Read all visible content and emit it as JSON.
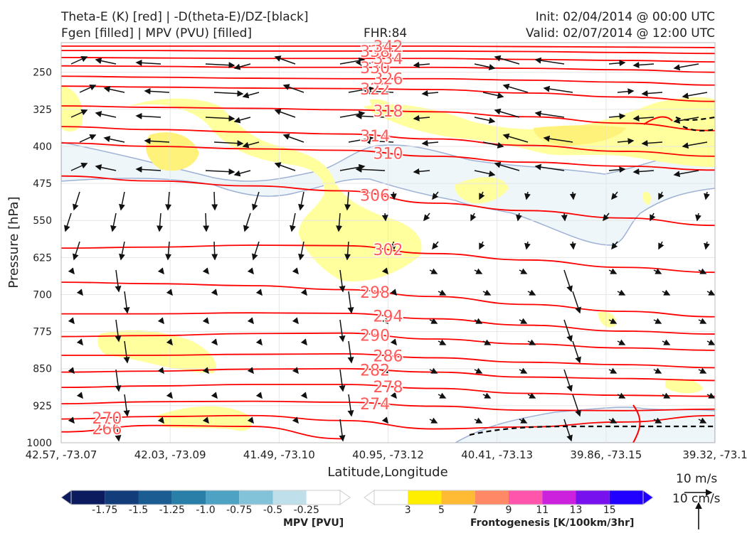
{
  "header": {
    "line1_left": "Theta-E (K) [red] | -D(theta-E)/DZ-[black]",
    "line2_left": "Fgen [filled] | MPV (PVU) [filled]",
    "fhr": "FHR:84",
    "init": "Init: 02/04/2014 @ 00:00 UTC",
    "valid": "Valid: 02/07/2014 @ 12:00 UTC"
  },
  "chart_data": {
    "type": "cross-section",
    "xlabel": "Latitude,Longitude",
    "ylabel": "Pressure [hPa]",
    "x_ticks": [
      "42.57, -73.07",
      "42.03, -73.09",
      "41.49, -73.10",
      "40.95, -73.12",
      "40.41, -73.13",
      "39.86, -73.15",
      "39.32, -73.1"
    ],
    "y_ticks": [
      250,
      325,
      400,
      475,
      550,
      625,
      700,
      775,
      850,
      925,
      1000
    ],
    "ylim": [
      1000,
      190
    ],
    "grid": true,
    "theta_e_contours": [
      {
        "label": "266",
        "y": [
          978,
          965,
          967,
          992,
          null,
          null,
          null,
          null
        ]
      },
      {
        "label": "270",
        "y": [
          952,
          947,
          945,
          955,
          972,
          968,
          958,
          945
        ]
      },
      {
        "label": "274",
        "y": [
          921,
          917,
          916,
          918,
          926,
          934,
          935,
          932
        ]
      },
      {
        "label": "278",
        "y": [
          888,
          885,
          882,
          882,
          890,
          900,
          904,
          906
        ]
      },
      {
        "label": "282",
        "y": [
          857,
          855,
          851,
          850,
          857,
          867,
          870,
          874
        ]
      },
      {
        "label": "286",
        "y": [
          823,
          823,
          821,
          820,
          828,
          837,
          842,
          848
        ]
      },
      {
        "label": "290",
        "y": [
          785,
          783,
          779,
          778,
          790,
          800,
          808,
          813
        ]
      },
      {
        "label": "294",
        "y": [
          739,
          739,
          737,
          738,
          749,
          762,
          774,
          780
        ]
      },
      {
        "label": "298",
        "y": [
          675,
          678,
          682,
          690,
          704,
          720,
          734,
          745
        ]
      },
      {
        "label": "302",
        "y": [
          606,
          604,
          600,
          601,
          617,
          630,
          645,
          655
        ]
      },
      {
        "label": "306",
        "y": [
          460,
          470,
          480,
          490,
          515,
          530,
          545,
          560
        ]
      },
      {
        "label": "310",
        "y": [
          393,
          400,
          405,
          408,
          420,
          432,
          440,
          448
        ]
      },
      {
        "label": "314",
        "y": [
          360,
          366,
          371,
          375,
          385,
          398,
          410,
          420
        ]
      },
      {
        "label": "318",
        "y": [
          318,
          321,
          323,
          326,
          330,
          340,
          353,
          368
        ]
      },
      {
        "label": "322",
        "y": [
          278,
          280,
          282,
          283,
          285,
          292,
          300,
          309
        ]
      },
      {
        "label": "326",
        "y": [
          258,
          260,
          262,
          263,
          263,
          266,
          270,
          276
        ]
      },
      {
        "label": "330",
        "y": [
          237,
          238,
          240,
          240,
          240,
          242,
          245,
          250
        ]
      },
      {
        "label": "334",
        "y": [
          220,
          221,
          222,
          222,
          222,
          224,
          226,
          229
        ]
      },
      {
        "label": "338",
        "y": [
          206,
          206,
          207,
          207,
          207,
          208,
          210,
          212
        ]
      },
      {
        "label": "342",
        "y": [
          197,
          197,
          197,
          197,
          197,
          198,
          199,
          200
        ]
      }
    ],
    "contour_x_fraction": [
      0,
      0.14,
      0.29,
      0.43,
      0.57,
      0.71,
      0.86,
      1.0
    ],
    "colorbars": [
      {
        "label": "MPV [PVU]",
        "ticks": [
          "-1.75",
          "-1.5",
          "-1.25",
          "-1.0",
          "-0.75",
          "-0.5",
          "-0.25"
        ],
        "colors": [
          "#0c1a5e",
          "#123d7a",
          "#1b5c93",
          "#2a7fa8",
          "#4ea2c4",
          "#82c3d9",
          "#bfe0ea",
          "#ffffff"
        ]
      },
      {
        "label": "Frontogenesis [K/100km/3hr]",
        "ticks": [
          "3",
          "5",
          "7",
          "9",
          "11",
          "13",
          "15"
        ],
        "colors": [
          "#ffffff",
          "#ffee00",
          "#ffbb33",
          "#ff8866",
          "#ff55aa",
          "#cc22dd",
          "#7711ee",
          "#2200ff"
        ]
      }
    ],
    "vector_scale": {
      "horizontal": "10 m/s",
      "vertical": "10 cm/s"
    },
    "colors": {
      "theta_e": "#ff0000",
      "stability": "#000000",
      "fgen_low": "#ffff99",
      "mpv_low": "#eaf4f7"
    }
  }
}
